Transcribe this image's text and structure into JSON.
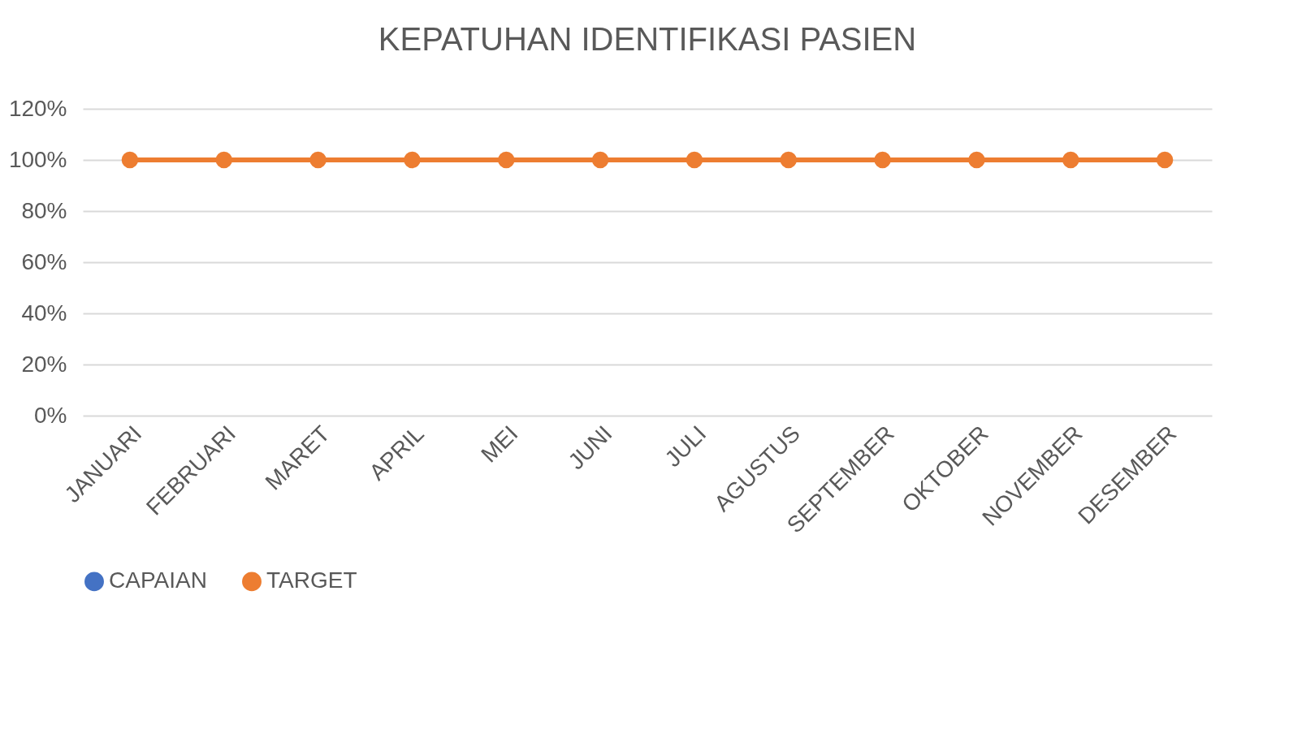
{
  "chart_data": {
    "type": "line",
    "title": "KEPATUHAN IDENTIFIKASI PASIEN",
    "categories": [
      "JANUARI",
      "FEBRUARI",
      "MARET",
      "APRIL",
      "MEI",
      "JUNI",
      "JULI",
      "AGUSTUS",
      "SEPTEMBER",
      "OKTOBER",
      "NOVEMBER",
      "DESEMBER"
    ],
    "series": [
      {
        "name": "CAPAIAN",
        "color": "#4472c4",
        "values": [
          null,
          null,
          null,
          null,
          null,
          null,
          null,
          null,
          null,
          null,
          null,
          null
        ]
      },
      {
        "name": "TARGET",
        "color": "#ed7d31",
        "values": [
          100,
          100,
          100,
          100,
          100,
          100,
          100,
          100,
          100,
          100,
          100,
          100
        ]
      }
    ],
    "ylim": [
      0,
      120
    ],
    "yticks": [
      {
        "value": 0,
        "label": "0%"
      },
      {
        "value": 20,
        "label": "20%"
      },
      {
        "value": 40,
        "label": "40%"
      },
      {
        "value": 60,
        "label": "60%"
      },
      {
        "value": 80,
        "label": "80%"
      },
      {
        "value": 100,
        "label": "100%"
      },
      {
        "value": 120,
        "label": "120%"
      }
    ],
    "grid": "y",
    "legend": "bottom",
    "marker": "circle",
    "line_style": "solid"
  }
}
